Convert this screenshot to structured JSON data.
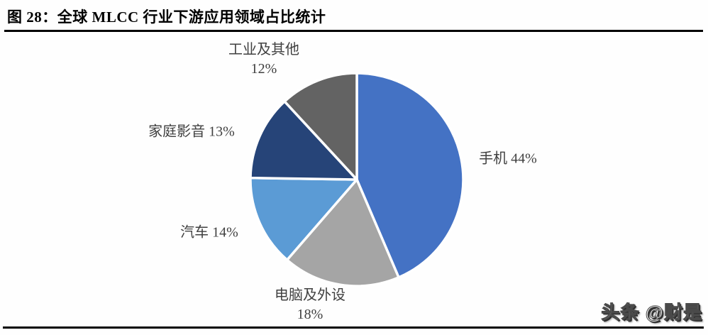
{
  "header": {
    "title": "图 28：全球 MLCC 行业下游应用领域占比统计"
  },
  "chart_data": {
    "type": "pie",
    "categories": [
      "手机",
      "电脑及外设",
      "汽车",
      "家庭影音",
      "工业及其他"
    ],
    "values": [
      44,
      18,
      14,
      13,
      12
    ],
    "unit": "percent",
    "slice_colors": [
      "#4472c4",
      "#a5a5a5",
      "#5b9bd5",
      "#264478",
      "#636363"
    ],
    "slice_ids": [
      "phone",
      "computer-peripherals",
      "automotive",
      "home-audio-video",
      "industrial-other"
    ],
    "start_angle_deg": 0,
    "direction": "clockwise",
    "separator_color": "#ffffff",
    "legend": "none",
    "title": "全球 MLCC 行业下游应用领域占比统计"
  },
  "callouts": {
    "industrial": {
      "line1": "工业及其他",
      "line2": "12%"
    },
    "home_av": {
      "text": "家庭影音 13%"
    },
    "automotive": {
      "text": "汽车 14%"
    },
    "computer": {
      "line1": "电脑及外设",
      "line2": "18%"
    },
    "phone": {
      "text": "手机 44%"
    }
  },
  "watermark": {
    "text": "头条 @财是"
  },
  "colors": {
    "phone_blue": "#4472c4",
    "computer_gray": "#a5a5a5",
    "auto_light_blue": "#5b9bd5",
    "home_av_navy": "#264478",
    "industrial_dark_gray": "#636363",
    "rule_black": "#000000",
    "label_text": "#404040"
  }
}
